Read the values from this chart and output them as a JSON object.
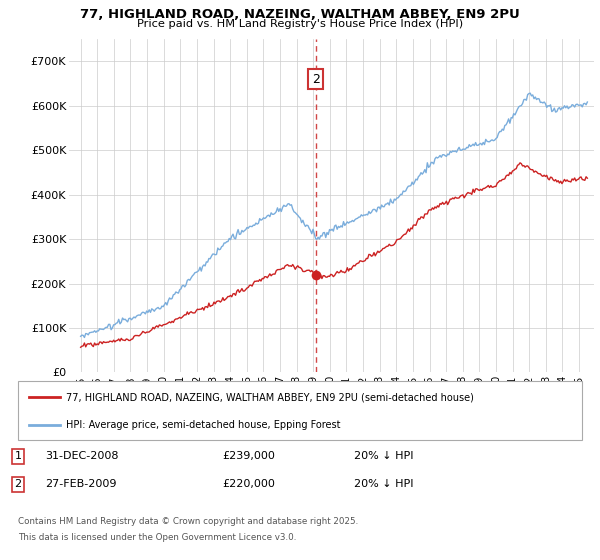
{
  "title": "77, HIGHLAND ROAD, NAZEING, WALTHAM ABBEY, EN9 2PU",
  "subtitle": "Price paid vs. HM Land Registry's House Price Index (HPI)",
  "ylim": [
    0,
    750000
  ],
  "yticks": [
    0,
    100000,
    200000,
    300000,
    400000,
    500000,
    600000,
    700000
  ],
  "ytick_labels": [
    "£0",
    "£100K",
    "£200K",
    "£300K",
    "£400K",
    "£500K",
    "£600K",
    "£700K"
  ],
  "hpi_color": "#7aaddc",
  "price_color": "#cc2222",
  "dashed_color": "#cc3333",
  "background_color": "#ffffff",
  "grid_color": "#cccccc",
  "legend_label_red": "77, HIGHLAND ROAD, NAZEING, WALTHAM ABBEY, EN9 2PU (semi-detached house)",
  "legend_label_blue": "HPI: Average price, semi-detached house, Epping Forest",
  "sale1_date": "31-DEC-2008",
  "sale1_price": "£239,000",
  "sale1_label": "20% ↓ HPI",
  "sale2_date": "27-FEB-2009",
  "sale2_price": "£220,000",
  "sale2_label": "20% ↓ HPI",
  "footnote1": "Contains HM Land Registry data © Crown copyright and database right 2025.",
  "footnote2": "This data is licensed under the Open Government Licence v3.0.",
  "sale2_year": 2009.16,
  "sale2_value": 220000
}
